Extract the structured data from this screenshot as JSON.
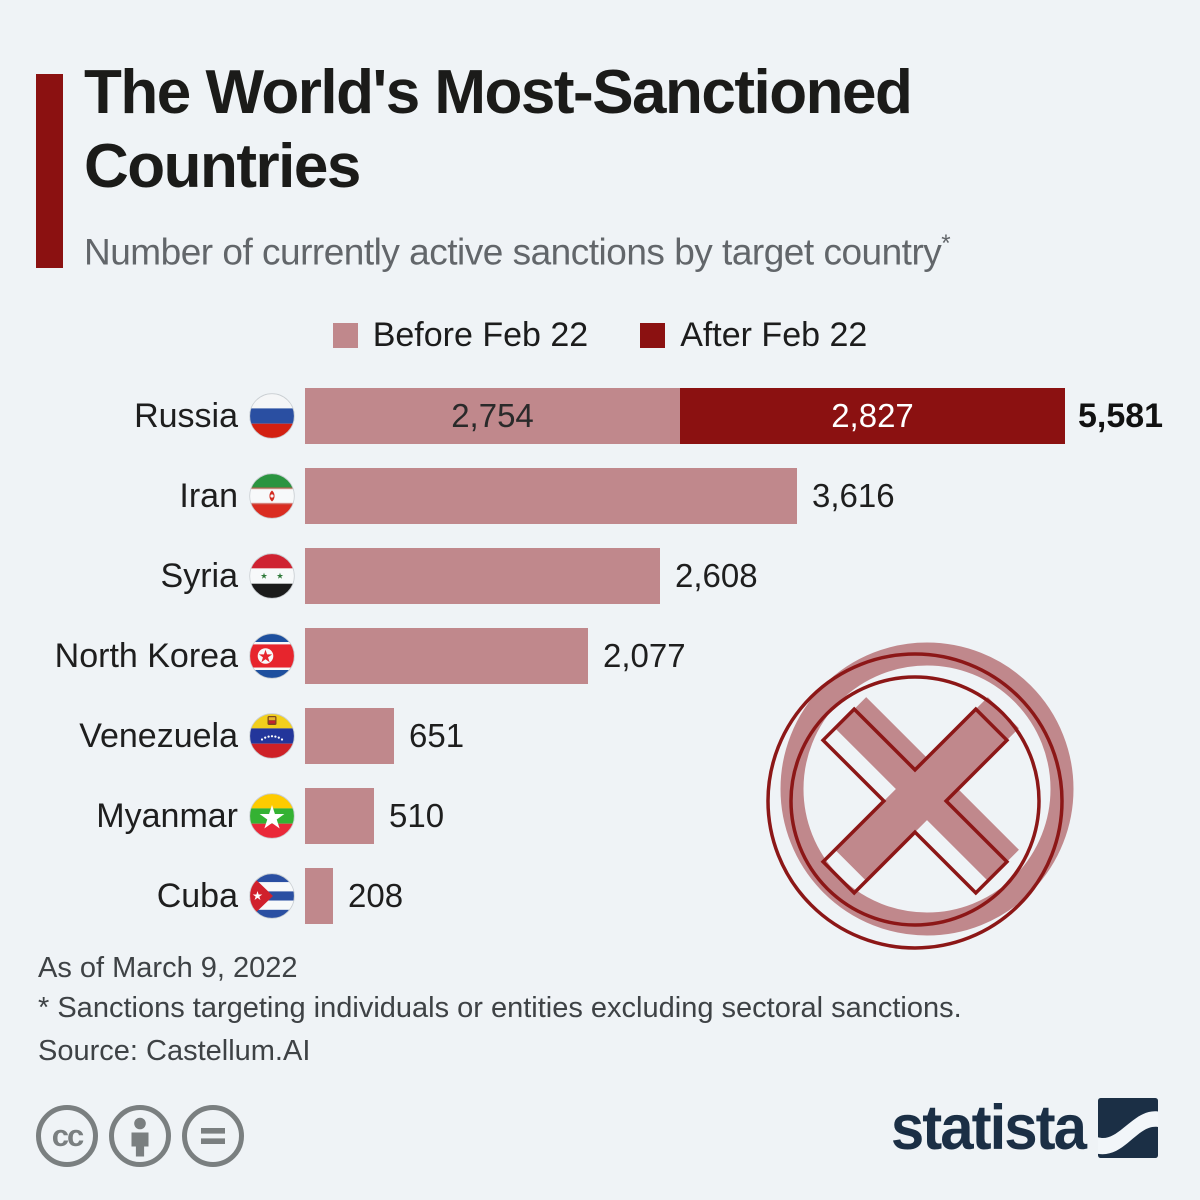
{
  "header": {
    "title_lines": [
      "The World's Most-Sanctioned",
      "Countries"
    ],
    "subtitle": "Number of currently active sanctions by target country",
    "footnote_mark": "*"
  },
  "legend": {
    "items": [
      {
        "label": "Before Feb 22",
        "color": "#c0888c"
      },
      {
        "label": "After Feb 22",
        "color": "#8b1111"
      }
    ]
  },
  "chart_data": {
    "type": "bar",
    "orientation": "horizontal",
    "stacked": true,
    "title": "The World's Most-Sanctioned Countries",
    "subtitle": "Number of currently active sanctions by target country*",
    "categories": [
      "Russia",
      "Iran",
      "Syria",
      "North Korea",
      "Venezuela",
      "Myanmar",
      "Cuba"
    ],
    "series": [
      {
        "name": "Before Feb 22",
        "values": [
          2754,
          3616,
          2608,
          2077,
          651,
          510,
          208
        ]
      },
      {
        "name": "After Feb 22",
        "values": [
          2827,
          0,
          0,
          0,
          0,
          0,
          0
        ]
      }
    ],
    "totals": [
      5581,
      3616,
      2608,
      2077,
      651,
      510,
      208
    ],
    "xmax": 5581,
    "legend_position": "top",
    "grid": false,
    "rows": [
      {
        "country": "Russia",
        "flag_icon": "flag-russia",
        "before": 2754,
        "after": 2827,
        "total": 5581,
        "before_label": "2,754",
        "after_label": "2,827",
        "total_label": "5,581"
      },
      {
        "country": "Iran",
        "flag_icon": "flag-iran",
        "before": 3616,
        "value_label": "3,616"
      },
      {
        "country": "Syria",
        "flag_icon": "flag-syria",
        "before": 2608,
        "value_label": "2,608"
      },
      {
        "country": "North Korea",
        "flag_icon": "flag-north-korea",
        "before": 2077,
        "value_label": "2,077"
      },
      {
        "country": "Venezuela",
        "flag_icon": "flag-venezuela",
        "before": 651,
        "value_label": "651"
      },
      {
        "country": "Myanmar",
        "flag_icon": "flag-myanmar",
        "before": 510,
        "value_label": "510"
      },
      {
        "country": "Cuba",
        "flag_icon": "flag-cuba",
        "before": 208,
        "value_label": "208"
      }
    ]
  },
  "footer": {
    "as_of": "As of March 9, 2022",
    "footnote": "* Sanctions targeting individuals or entities excluding sectoral sanctions.",
    "source": "Source: Castellum.AI"
  },
  "branding": {
    "logo_text": "statista",
    "license_icons": [
      "cc-icon",
      "cc-by-icon",
      "cc-nd-icon"
    ]
  },
  "colors": {
    "background": "#eff3f6",
    "before_bar": "#c0888c",
    "after_bar": "#8b1111",
    "accent_dark_red": "#8b1111",
    "title_text": "#1b1b19",
    "subtitle_text": "#62666a",
    "footer_text": "#3e4245",
    "logo_navy": "#1b2f45",
    "license_gray": "#7a7f80"
  }
}
